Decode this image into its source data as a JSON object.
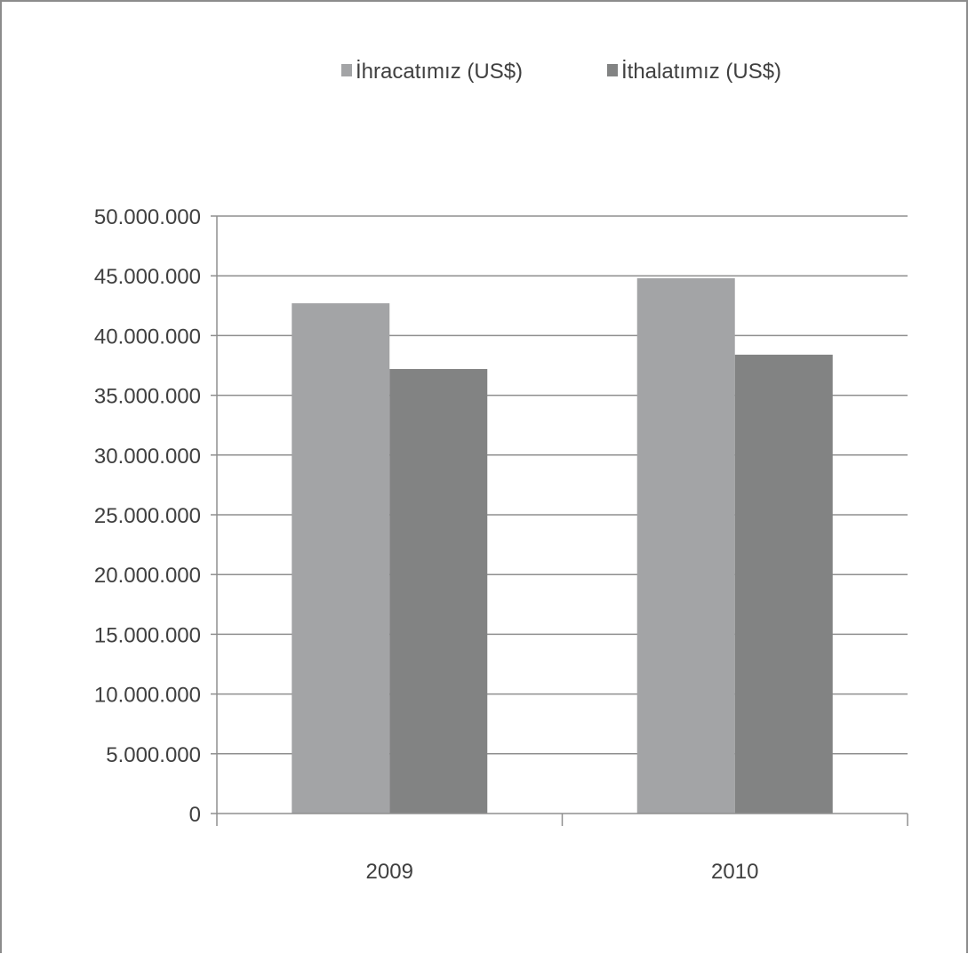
{
  "chart_data": {
    "type": "bar",
    "categories": [
      "2009",
      "2010"
    ],
    "series": [
      {
        "name": "İhracatımız (US$)",
        "values": [
          42700000,
          44800000
        ],
        "color": "#a3a4a6"
      },
      {
        "name": "İthalatımız (US$)",
        "values": [
          37200000,
          38400000
        ],
        "color": "#828383"
      }
    ],
    "ylim": [
      0,
      50000000
    ],
    "yticks": [
      0,
      5000000,
      10000000,
      15000000,
      20000000,
      25000000,
      30000000,
      35000000,
      40000000,
      45000000,
      50000000
    ],
    "ytick_labels": [
      "0",
      "5.000.000",
      "10.000.000",
      "15.000.000",
      "20.000.000",
      "25.000.000",
      "30.000.000",
      "35.000.000",
      "40.000.000",
      "45.000.000",
      "50.000.000"
    ],
    "grid": true,
    "legend_position": "top",
    "gridline_color": "#8f8f8f",
    "axis_color": "#8f8f8f"
  }
}
